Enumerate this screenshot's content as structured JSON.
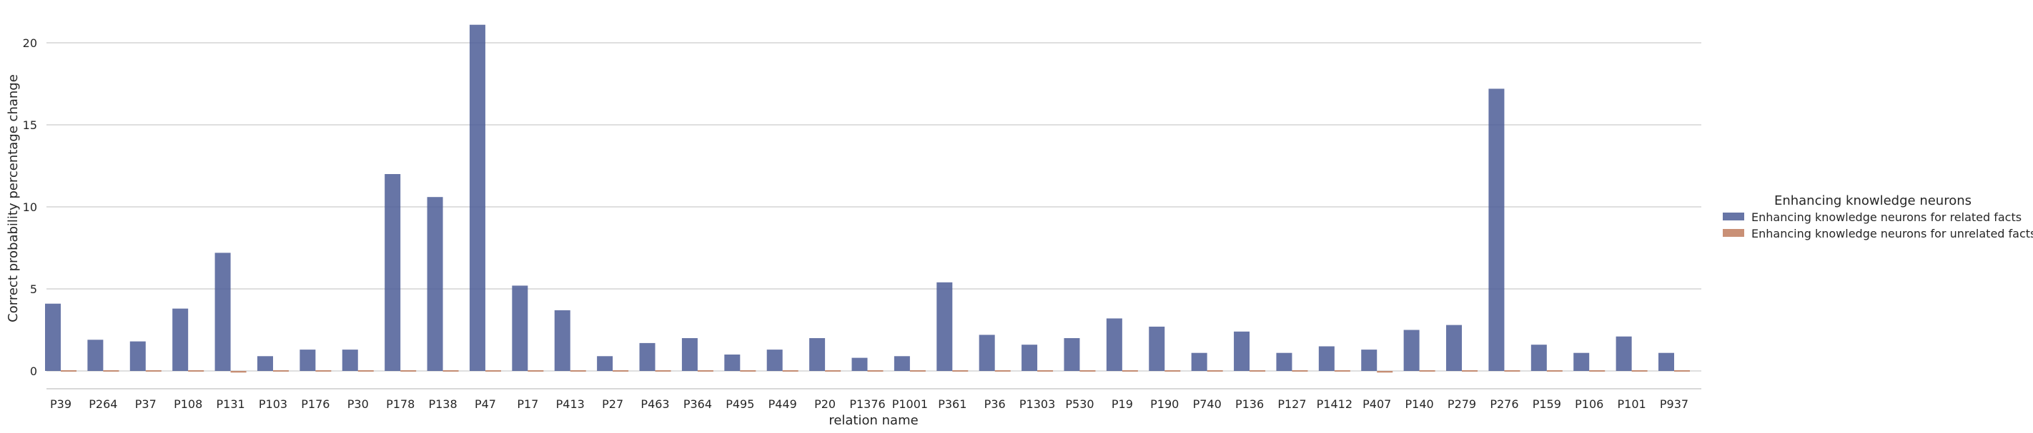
{
  "chart_data": {
    "type": "bar",
    "title": "",
    "xlabel": "relation name",
    "ylabel": "Correct probability percentage change",
    "ylim": [
      -1.1,
      21.5
    ],
    "yticks": [
      0,
      5,
      10,
      15,
      20
    ],
    "grid": "horizontal",
    "legend_title": "Enhancing knowledge neurons",
    "legend_position": "right",
    "categories": [
      "P39",
      "P264",
      "P37",
      "P108",
      "P131",
      "P103",
      "P176",
      "P30",
      "P178",
      "P138",
      "P47",
      "P17",
      "P413",
      "P27",
      "P463",
      "P364",
      "P495",
      "P449",
      "P20",
      "P1376",
      "P1001",
      "P361",
      "P36",
      "P1303",
      "P530",
      "P19",
      "P190",
      "P740",
      "P136",
      "P127",
      "P1412",
      "P407",
      "P140",
      "P279",
      "P276",
      "P159",
      "P106",
      "P101",
      "P937"
    ],
    "series": [
      {
        "name": "Enhancing knowledge neurons for related facts",
        "color": "#4c5d96",
        "values": [
          4.1,
          1.9,
          1.8,
          3.8,
          7.2,
          0.9,
          1.3,
          1.3,
          12.0,
          10.6,
          21.1,
          5.2,
          3.7,
          0.9,
          1.7,
          2.0,
          1.0,
          1.3,
          2.0,
          0.8,
          0.9,
          5.4,
          2.2,
          1.6,
          2.0,
          3.2,
          2.7,
          1.1,
          2.4,
          1.1,
          1.5,
          1.3,
          2.5,
          2.8,
          17.2,
          1.6,
          1.1,
          2.1,
          1.1
        ]
      },
      {
        "name": "Enhancing knowledge neurons for unrelated facts",
        "color": "#c07c5e",
        "values": [
          0.0,
          -0.05,
          -0.05,
          0.0,
          -0.1,
          -0.05,
          0.0,
          0.0,
          0.0,
          0.0,
          0.0,
          -0.05,
          0.0,
          -0.05,
          0.0,
          -0.05,
          -0.05,
          0.0,
          -0.05,
          0.0,
          -0.05,
          -0.05,
          -0.05,
          0.0,
          0.0,
          0.0,
          0.0,
          -0.05,
          0.0,
          0.0,
          -0.05,
          -0.1,
          0.0,
          0.0,
          0.0,
          -0.05,
          0.0,
          0.0,
          -0.05
        ]
      }
    ]
  }
}
